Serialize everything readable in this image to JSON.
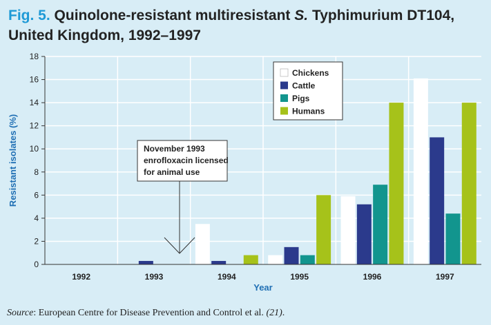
{
  "figure": {
    "label": "Fig. 5.",
    "title_line1_pre": "Quinolone-resistant multiresistant ",
    "title_line1_italic": "S.",
    "title_line1_post": " Typhimurium DT104,",
    "title_line2": "United Kingdom, 1992–1997"
  },
  "source": {
    "label": "Source",
    "text": ": European Centre for Disease Prevention and Control et al. ",
    "ref": "(21)",
    "end": "."
  },
  "annotation": {
    "lines": [
      "November 1993",
      "enrofloxacin licensed",
      "for animal use"
    ]
  },
  "colors": {
    "Chickens": "#ffffff",
    "Cattle": "#2b3a8c",
    "Pigs": "#12958e",
    "Humans": "#a6c21a",
    "grid": "#ffffff",
    "axis": "#333333"
  },
  "chart_data": {
    "type": "bar",
    "title": "Quinolone-resistant multiresistant S. Typhimurium DT104, United Kingdom, 1992–1997",
    "xlabel": "Year",
    "ylabel": "Resistant isolates (%)",
    "ylim": [
      0,
      18
    ],
    "yticks": [
      0,
      2,
      4,
      6,
      8,
      10,
      12,
      14,
      16,
      18
    ],
    "grid": true,
    "legend_position": "top-right",
    "categories": [
      "1992",
      "1993",
      "1994",
      "1995",
      "1996",
      "1997"
    ],
    "series": [
      {
        "name": "Chickens",
        "values": [
          0,
          0,
          3.5,
          0.8,
          5.9,
          16.1
        ]
      },
      {
        "name": "Cattle",
        "values": [
          0,
          0.3,
          0.3,
          1.5,
          5.2,
          11.0
        ]
      },
      {
        "name": "Pigs",
        "values": [
          0,
          0,
          0,
          0.8,
          6.9,
          4.4
        ]
      },
      {
        "name": "Humans",
        "values": [
          0,
          0,
          0.8,
          6.0,
          14.0,
          14.0
        ]
      }
    ]
  }
}
